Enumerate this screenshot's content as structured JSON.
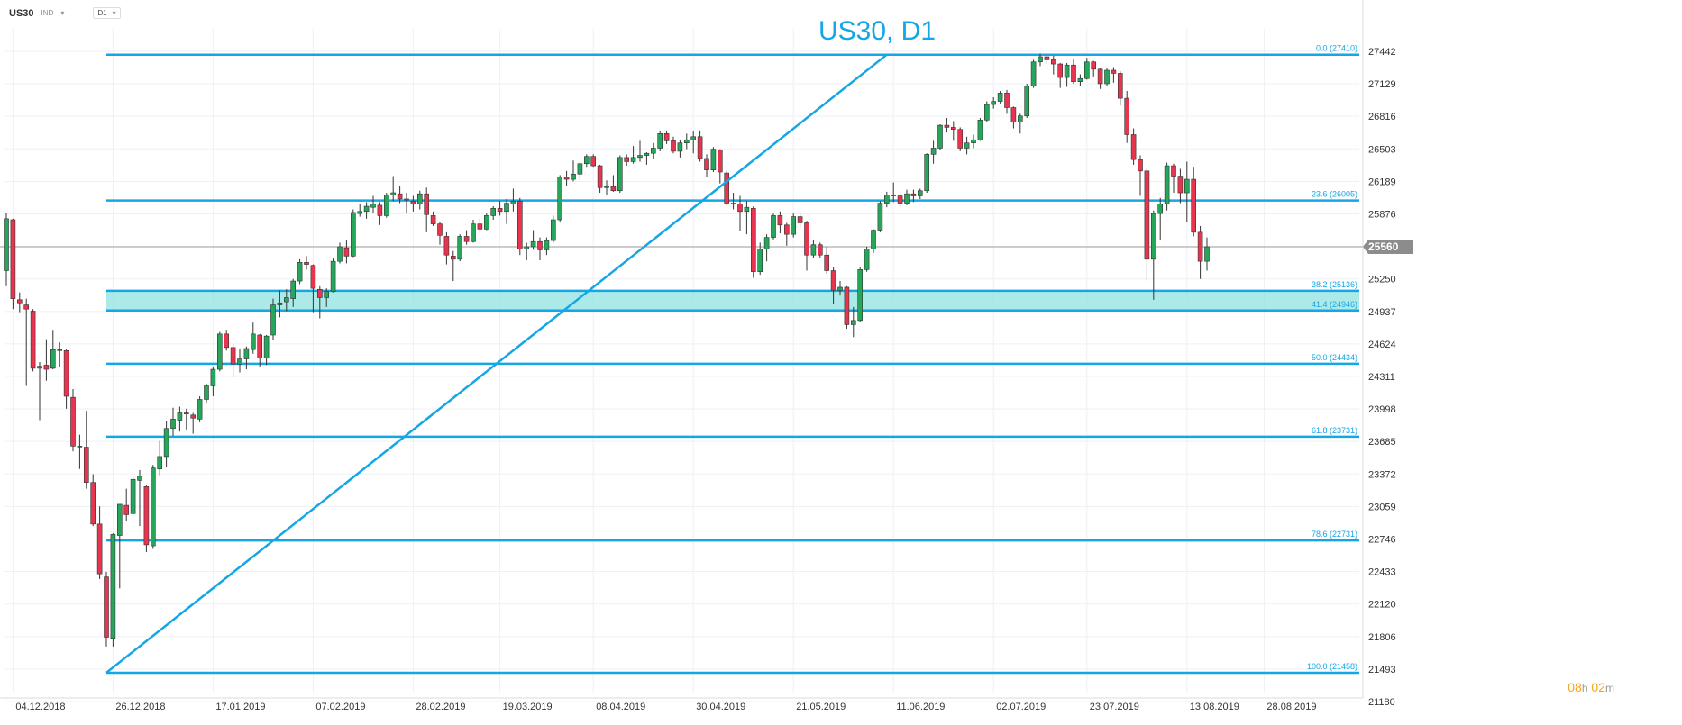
{
  "toolbar": {
    "symbol": "US30",
    "instrument_type": "IND",
    "timeframe": "D1"
  },
  "title": "US30, D1",
  "timer": {
    "hours": "08",
    "hours_unit": "h",
    "minutes": "02",
    "minutes_unit": "m"
  },
  "colors": {
    "accent": "#15a6e6",
    "bull": "#26a65b",
    "bear": "#e8344f",
    "zone": "#8fe3e0",
    "grid": "#eef0f3"
  },
  "chart_data": {
    "type": "candlestick",
    "title": "US30, D1",
    "y_ticks": [
      27442,
      27129,
      26816,
      26503,
      26189,
      25876,
      25560,
      25250,
      24937,
      24624,
      24311,
      23998,
      23685,
      23372,
      23059,
      22746,
      22433,
      22120,
      21806,
      21493,
      21180
    ],
    "x_ticks": [
      "04.12.2018",
      "26.12.2018",
      "17.01.2019",
      "07.02.2019",
      "28.02.2019",
      "19.03.2019",
      "08.04.2019",
      "30.04.2019",
      "21.05.2019",
      "11.06.2019",
      "02.07.2019",
      "23.07.2019",
      "13.08.2019",
      "28.08.2019"
    ],
    "ylim": [
      21180,
      27740
    ],
    "current_price": 25560,
    "fibonacci": [
      {
        "level": "0.0",
        "value": 27410,
        "label": "0.0 (27410)"
      },
      {
        "level": "23.6",
        "value": 26005,
        "label": "23.6 (26005)"
      },
      {
        "level": "38.2",
        "value": 25136,
        "label": "38.2 (25136)"
      },
      {
        "level": "41.4",
        "value": 24946,
        "label": "41.4 (24946)"
      },
      {
        "level": "50.0",
        "value": 24434,
        "label": "50.0 (24434)"
      },
      {
        "level": "61.8",
        "value": 23731,
        "label": "61.8 (23731)"
      },
      {
        "level": "78.6",
        "value": 22731,
        "label": "78.6 (22731)"
      },
      {
        "level": "100.0",
        "value": 21458,
        "label": "100.0 (21458)"
      }
    ],
    "support_zone": {
      "from": 24946,
      "to": 25136
    },
    "trendline": {
      "from_date": "24.12.2018",
      "from_value": 21458,
      "to_date": "10.06.2019",
      "to_value": 27410
    },
    "ohlc": [
      [
        "03.12.2018",
        25330,
        25890,
        25180,
        25830
      ],
      [
        "04.12.2018",
        25820,
        25830,
        24960,
        25060
      ],
      [
        "05.12.2018",
        25050,
        25120,
        24930,
        25020
      ],
      [
        "06.12.2018",
        25000,
        25060,
        24220,
        24960
      ],
      [
        "07.12.2018",
        24940,
        24960,
        24360,
        24390
      ],
      [
        "10.12.2018",
        24390,
        24450,
        23890,
        24410
      ],
      [
        "11.12.2018",
        24420,
        24670,
        24270,
        24380
      ],
      [
        "12.12.2018",
        24390,
        24760,
        24380,
        24570
      ],
      [
        "13.12.2018",
        24570,
        24640,
        24400,
        24560
      ],
      [
        "14.12.2018",
        24560,
        24570,
        24000,
        24120
      ],
      [
        "17.12.2018",
        24110,
        24190,
        23590,
        23640
      ],
      [
        "18.12.2018",
        23640,
        23750,
        23420,
        23640
      ],
      [
        "19.12.2018",
        23630,
        23980,
        23230,
        23290
      ],
      [
        "20.12.2018",
        23290,
        23370,
        22870,
        22890
      ],
      [
        "21.12.2018",
        22890,
        23060,
        22360,
        22410
      ],
      [
        "24.12.2018",
        22380,
        22430,
        21710,
        21800
      ],
      [
        "26.12.2018",
        21790,
        22800,
        21710,
        22790
      ],
      [
        "27.12.2018",
        22780,
        23080,
        22270,
        23080
      ],
      [
        "28.12.2018",
        23070,
        23230,
        22920,
        22980
      ],
      [
        "31.12.2018",
        22990,
        23340,
        22980,
        23320
      ],
      [
        "02.01.2019",
        23310,
        23410,
        22870,
        23350
      ],
      [
        "03.01.2019",
        23250,
        23260,
        22620,
        22690
      ],
      [
        "04.01.2019",
        22680,
        23460,
        22650,
        23430
      ],
      [
        "07.01.2019",
        23420,
        23690,
        23360,
        23540
      ],
      [
        "08.01.2019",
        23540,
        23880,
        23440,
        23810
      ],
      [
        "09.01.2019",
        23810,
        24010,
        23740,
        23900
      ],
      [
        "10.01.2019",
        23890,
        24020,
        23780,
        23960
      ],
      [
        "11.01.2019",
        23960,
        24000,
        23800,
        23950
      ],
      [
        "14.01.2019",
        23940,
        23960,
        23760,
        23910
      ],
      [
        "15.01.2019",
        23900,
        24120,
        23870,
        24090
      ],
      [
        "16.01.2019",
        24090,
        24240,
        24050,
        24220
      ],
      [
        "17.01.2019",
        24220,
        24400,
        24120,
        24380
      ],
      [
        "18.01.2019",
        24380,
        24740,
        24360,
        24720
      ],
      [
        "21.01.2019",
        24720,
        24760,
        24560,
        24590
      ],
      [
        "22.01.2019",
        24590,
        24620,
        24300,
        24430
      ],
      [
        "23.01.2019",
        24430,
        24580,
        24350,
        24480
      ],
      [
        "24.01.2019",
        24480,
        24600,
        24380,
        24580
      ],
      [
        "25.01.2019",
        24570,
        24830,
        24530,
        24720
      ],
      [
        "28.01.2019",
        24710,
        24720,
        24400,
        24490
      ],
      [
        "29.01.2019",
        24490,
        24710,
        24420,
        24700
      ],
      [
        "30.01.2019",
        24710,
        25060,
        24660,
        25000
      ],
      [
        "31.01.2019",
        25000,
        25140,
        24880,
        25020
      ],
      [
        "01.02.2019",
        25030,
        25150,
        24940,
        25070
      ],
      [
        "04.02.2019",
        25060,
        25250,
        24980,
        25230
      ],
      [
        "05.02.2019",
        25230,
        25440,
        25200,
        25410
      ],
      [
        "06.02.2019",
        25410,
        25470,
        25340,
        25390
      ],
      [
        "07.02.2019",
        25380,
        25390,
        24930,
        25160
      ],
      [
        "08.02.2019",
        25150,
        25180,
        24870,
        25070
      ],
      [
        "11.02.2019",
        25070,
        25160,
        24980,
        25130
      ],
      [
        "12.02.2019",
        25130,
        25450,
        25120,
        25420
      ],
      [
        "13.02.2019",
        25420,
        25600,
        25400,
        25560
      ],
      [
        "14.02.2019",
        25550,
        25620,
        25400,
        25470
      ],
      [
        "15.02.2019",
        25470,
        25920,
        25460,
        25890
      ],
      [
        "18.02.2019",
        25880,
        25970,
        25850,
        25900
      ],
      [
        "19.02.2019",
        25900,
        25990,
        25830,
        25950
      ],
      [
        "20.02.2019",
        25940,
        26050,
        25890,
        25970
      ],
      [
        "21.02.2019",
        25960,
        25990,
        25770,
        25860
      ],
      [
        "22.02.2019",
        25860,
        26080,
        25840,
        26060
      ],
      [
        "25.02.2019",
        26060,
        26240,
        26000,
        26080
      ],
      [
        "26.02.2019",
        26070,
        26150,
        25980,
        26020
      ],
      [
        "27.02.2019",
        26020,
        26080,
        25880,
        26010
      ],
      [
        "28.02.2019",
        26000,
        26050,
        25900,
        25970
      ],
      [
        "01.03.2019",
        25970,
        26100,
        25920,
        26070
      ],
      [
        "04.03.2019",
        26070,
        26130,
        25700,
        25870
      ],
      [
        "05.03.2019",
        25860,
        25900,
        25760,
        25780
      ],
      [
        "06.03.2019",
        25780,
        25800,
        25580,
        25670
      ],
      [
        "07.03.2019",
        25660,
        25700,
        25390,
        25480
      ],
      [
        "08.03.2019",
        25470,
        25520,
        25230,
        25440
      ],
      [
        "11.03.2019",
        25440,
        25680,
        25420,
        25660
      ],
      [
        "12.03.2019",
        25660,
        25720,
        25580,
        25610
      ],
      [
        "13.03.2019",
        25610,
        25820,
        25600,
        25780
      ],
      [
        "14.03.2019",
        25780,
        25830,
        25690,
        25730
      ],
      [
        "15.03.2019",
        25730,
        25880,
        25720,
        25860
      ],
      [
        "18.03.2019",
        25860,
        25950,
        25820,
        25930
      ],
      [
        "19.03.2019",
        25930,
        26000,
        25860,
        25900
      ],
      [
        "20.03.2019",
        25900,
        26020,
        25780,
        25980
      ],
      [
        "21.03.2019",
        25970,
        26120,
        25900,
        26000
      ],
      [
        "22.03.2019",
        26000,
        26030,
        25480,
        25540
      ],
      [
        "25.03.2019",
        25540,
        25600,
        25430,
        25560
      ],
      [
        "26.03.2019",
        25560,
        25720,
        25530,
        25610
      ],
      [
        "27.03.2019",
        25610,
        25650,
        25430,
        25530
      ],
      [
        "28.03.2019",
        25530,
        25650,
        25480,
        25620
      ],
      [
        "29.03.2019",
        25620,
        25860,
        25600,
        25820
      ],
      [
        "01.04.2019",
        25820,
        26250,
        25800,
        26230
      ],
      [
        "02.04.2019",
        26230,
        26290,
        26150,
        26210
      ],
      [
        "03.04.2019",
        26210,
        26390,
        26190,
        26260
      ],
      [
        "04.04.2019",
        26260,
        26380,
        26200,
        26360
      ],
      [
        "05.04.2019",
        26360,
        26450,
        26330,
        26430
      ],
      [
        "08.04.2019",
        26430,
        26450,
        26330,
        26340
      ],
      [
        "09.04.2019",
        26340,
        26350,
        26080,
        26130
      ],
      [
        "10.04.2019",
        26130,
        26200,
        26060,
        26140
      ],
      [
        "11.04.2019",
        26140,
        26250,
        26090,
        26100
      ],
      [
        "12.04.2019",
        26100,
        26440,
        26080,
        26420
      ],
      [
        "15.04.2019",
        26420,
        26450,
        26340,
        26380
      ],
      [
        "16.04.2019",
        26380,
        26530,
        26360,
        26420
      ],
      [
        "17.04.2019",
        26420,
        26580,
        26380,
        26440
      ],
      [
        "18.04.2019",
        26440,
        26470,
        26350,
        26460
      ],
      [
        "22.04.2019",
        26460,
        26560,
        26410,
        26510
      ],
      [
        "23.04.2019",
        26510,
        26680,
        26480,
        26650
      ],
      [
        "24.04.2019",
        26650,
        26680,
        26550,
        26580
      ],
      [
        "25.04.2019",
        26580,
        26620,
        26460,
        26480
      ],
      [
        "26.04.2019",
        26480,
        26590,
        26420,
        26560
      ],
      [
        "29.04.2019",
        26560,
        26650,
        26500,
        26590
      ],
      [
        "30.04.2019",
        26590,
        26670,
        26460,
        26620
      ],
      [
        "01.05.2019",
        26620,
        26680,
        26380,
        26410
      ],
      [
        "02.05.2019",
        26410,
        26450,
        26230,
        26300
      ],
      [
        "03.05.2019",
        26300,
        26520,
        26280,
        26500
      ],
      [
        "06.05.2019",
        26490,
        26500,
        26170,
        26280
      ],
      [
        "07.05.2019",
        26270,
        26290,
        25960,
        25980
      ],
      [
        "08.05.2019",
        25980,
        26080,
        25920,
        25970
      ],
      [
        "09.05.2019",
        25970,
        26050,
        25710,
        25900
      ],
      [
        "10.05.2019",
        25900,
        26000,
        25680,
        25940
      ],
      [
        "13.05.2019",
        25930,
        25950,
        25260,
        25320
      ],
      [
        "14.05.2019",
        25320,
        25600,
        25290,
        25540
      ],
      [
        "15.05.2019",
        25540,
        25680,
        25420,
        25650
      ],
      [
        "16.05.2019",
        25650,
        25880,
        25630,
        25860
      ],
      [
        "17.05.2019",
        25860,
        25900,
        25690,
        25770
      ],
      [
        "20.05.2019",
        25770,
        25790,
        25570,
        25680
      ],
      [
        "21.05.2019",
        25680,
        25880,
        25650,
        25850
      ],
      [
        "22.05.2019",
        25850,
        25880,
        25740,
        25790
      ],
      [
        "23.05.2019",
        25790,
        25810,
        25330,
        25480
      ],
      [
        "24.05.2019",
        25480,
        25630,
        25450,
        25580
      ],
      [
        "27.05.2019",
        25580,
        25600,
        25450,
        25480
      ],
      [
        "28.05.2019",
        25480,
        25560,
        25300,
        25330
      ],
      [
        "29.05.2019",
        25330,
        25360,
        25010,
        25140
      ],
      [
        "30.05.2019",
        25140,
        25230,
        25090,
        25170
      ],
      [
        "31.05.2019",
        25170,
        25180,
        24770,
        24810
      ],
      [
        "03.06.2019",
        24810,
        24980,
        24690,
        24850
      ],
      [
        "04.06.2019",
        24850,
        25360,
        24840,
        25340
      ],
      [
        "05.06.2019",
        25340,
        25560,
        25320,
        25540
      ],
      [
        "06.06.2019",
        25540,
        25730,
        25500,
        25720
      ],
      [
        "07.06.2019",
        25720,
        26000,
        25700,
        25980
      ],
      [
        "10.06.2019",
        25980,
        26090,
        25940,
        26060
      ],
      [
        "11.06.2019",
        26060,
        26180,
        25990,
        26050
      ],
      [
        "12.06.2019",
        26050,
        26080,
        25950,
        25980
      ],
      [
        "13.06.2019",
        25980,
        26110,
        25960,
        26070
      ],
      [
        "14.06.2019",
        26070,
        26110,
        25990,
        26050
      ],
      [
        "17.06.2019",
        26050,
        26120,
        26020,
        26100
      ],
      [
        "18.06.2019",
        26100,
        26460,
        26080,
        26450
      ],
      [
        "19.06.2019",
        26450,
        26580,
        26360,
        26510
      ],
      [
        "20.06.2019",
        26510,
        26740,
        26490,
        26730
      ],
      [
        "21.06.2019",
        26730,
        26800,
        26660,
        26710
      ],
      [
        "24.06.2019",
        26710,
        26770,
        26580,
        26690
      ],
      [
        "25.06.2019",
        26690,
        26710,
        26480,
        26510
      ],
      [
        "26.06.2019",
        26510,
        26620,
        26450,
        26560
      ],
      [
        "27.06.2019",
        26560,
        26640,
        26510,
        26590
      ],
      [
        "28.06.2019",
        26590,
        26800,
        26580,
        26780
      ],
      [
        "01.07.2019",
        26780,
        26960,
        26760,
        26930
      ],
      [
        "02.07.2019",
        26930,
        27000,
        26890,
        26960
      ],
      [
        "03.07.2019",
        26960,
        27060,
        26940,
        27040
      ],
      [
        "05.07.2019",
        27040,
        27070,
        26840,
        26900
      ],
      [
        "08.07.2019",
        26900,
        26910,
        26700,
        26760
      ],
      [
        "09.07.2019",
        26760,
        26840,
        26650,
        26820
      ],
      [
        "10.07.2019",
        26820,
        27130,
        26800,
        27110
      ],
      [
        "11.07.2019",
        27110,
        27360,
        27090,
        27340
      ],
      [
        "12.07.2019",
        27340,
        27420,
        27300,
        27390
      ],
      [
        "15.07.2019",
        27390,
        27410,
        27320,
        27360
      ],
      [
        "16.07.2019",
        27360,
        27400,
        27220,
        27320
      ],
      [
        "17.07.2019",
        27320,
        27330,
        27090,
        27190
      ],
      [
        "18.07.2019",
        27190,
        27330,
        27100,
        27310
      ],
      [
        "19.07.2019",
        27310,
        27370,
        27130,
        27150
      ],
      [
        "22.07.2019",
        27150,
        27220,
        27110,
        27180
      ],
      [
        "23.07.2019",
        27180,
        27380,
        27170,
        27340
      ],
      [
        "24.07.2019",
        27340,
        27350,
        27200,
        27270
      ],
      [
        "25.07.2019",
        27270,
        27280,
        27080,
        27130
      ],
      [
        "26.07.2019",
        27130,
        27280,
        27110,
        27260
      ],
      [
        "29.07.2019",
        27260,
        27290,
        27140,
        27230
      ],
      [
        "30.07.2019",
        27230,
        27250,
        26920,
        26990
      ],
      [
        "31.07.2019",
        26990,
        27060,
        26560,
        26640
      ],
      [
        "01.08.2019",
        26640,
        26700,
        26350,
        26400
      ],
      [
        "02.08.2019",
        26400,
        26440,
        26050,
        26290
      ],
      [
        "05.08.2019",
        26290,
        26320,
        25230,
        25440
      ],
      [
        "06.08.2019",
        25440,
        25910,
        25050,
        25880
      ],
      [
        "07.08.2019",
        25880,
        26030,
        25620,
        25970
      ],
      [
        "08.08.2019",
        25970,
        26370,
        25910,
        26340
      ],
      [
        "09.08.2019",
        26340,
        26360,
        26080,
        26240
      ],
      [
        "12.08.2019",
        26240,
        26310,
        25980,
        26080
      ],
      [
        "13.08.2019",
        26080,
        26380,
        25800,
        26210
      ],
      [
        "14.08.2019",
        26210,
        26330,
        25660,
        25700
      ],
      [
        "15.08.2019",
        25700,
        25760,
        25250,
        25420
      ],
      [
        "16.08.2019",
        25420,
        25650,
        25330,
        25560
      ]
    ]
  }
}
